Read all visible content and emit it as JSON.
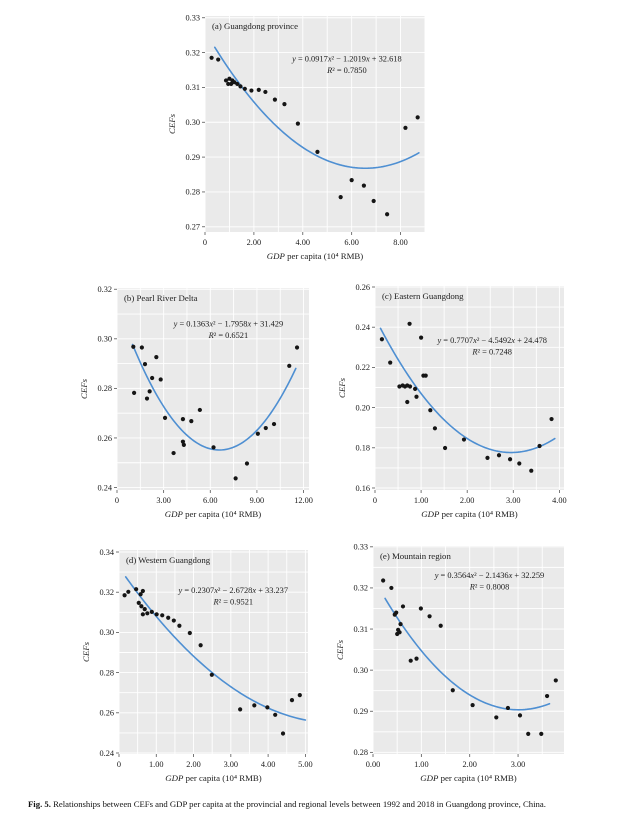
{
  "style": {
    "plot_bg": "#eaeaea",
    "grid": "#ffffff",
    "point": "#151515",
    "curve": "#4e8fd2",
    "text": "#1c1c1c",
    "tick": "#555555"
  },
  "figure": {
    "caption_label": "Fig. 5.",
    "caption_text": "Relationships between CEFs and GDP per capita at the provincial and regional levels between 1992 and 2018 in Guangdong province, China."
  },
  "chart_data": [
    {
      "type": "scatter",
      "panel": "a",
      "title": "(a) Guangdong province",
      "equation": "y = 0.0917x² − 1.2019x + 32.618",
      "r2": "R² = 0.7850",
      "fit": {
        "a": 0.0917,
        "b": -1.2019,
        "c": 32.618,
        "scale": 0.01,
        "x_start": 0.4,
        "x_end": 8.75
      },
      "xlabel_italic": "GDP",
      "xlabel_rest": " per capita (10⁴ RMB)",
      "ylabel": "CEFs",
      "xlim": [
        0,
        9.0
      ],
      "ylim": [
        0.2685,
        0.3305
      ],
      "xticks": {
        "values": [
          0,
          2,
          4,
          6,
          8
        ],
        "labels": [
          "0",
          "2.00",
          "4.00",
          "6.00",
          "8.00"
        ]
      },
      "yticks": {
        "values": [
          0.27,
          0.28,
          0.29,
          0.3,
          0.31,
          0.32,
          0.33
        ],
        "labels": [
          "0.27",
          "0.28",
          "0.29",
          "0.30",
          "0.31",
          "0.32",
          "0.33"
        ]
      },
      "grid": {
        "x_step": 1.0,
        "y_step": 0.01
      },
      "points": [
        [
          0.27,
          0.3185
        ],
        [
          0.54,
          0.318
        ],
        [
          0.86,
          0.312
        ],
        [
          0.95,
          0.311
        ],
        [
          1.0,
          0.3125
        ],
        [
          1.07,
          0.311
        ],
        [
          1.12,
          0.312
        ],
        [
          1.2,
          0.3115
        ],
        [
          1.32,
          0.311
        ],
        [
          1.45,
          0.3103
        ],
        [
          1.63,
          0.3096
        ],
        [
          1.9,
          0.3091
        ],
        [
          2.2,
          0.3093
        ],
        [
          2.47,
          0.3087
        ],
        [
          2.86,
          0.3065
        ],
        [
          3.25,
          0.3052
        ],
        [
          3.8,
          0.2996
        ],
        [
          4.6,
          0.2915
        ],
        [
          5.55,
          0.2785
        ],
        [
          6.0,
          0.2834
        ],
        [
          6.5,
          0.2818
        ],
        [
          6.9,
          0.2774
        ],
        [
          7.45,
          0.2736
        ],
        [
          8.2,
          0.2984
        ],
        [
          8.7,
          0.3014
        ]
      ]
    },
    {
      "type": "scatter",
      "panel": "b",
      "title": "(b) Pearl River Delta",
      "equation": "y = 0.1363x² − 1.7958x + 31.429",
      "r2": "R² = 0.6521",
      "fit": {
        "a": 0.1363,
        "b": -1.7958,
        "c": 31.429,
        "scale": 0.01,
        "x_start": 1.0,
        "x_end": 11.5
      },
      "xlabel_italic": "GDP",
      "xlabel_rest": " per capita (10⁴ RMB)",
      "ylabel": "CEFs",
      "xlim": [
        0,
        12.35
      ],
      "ylim": [
        0.239,
        0.3205
      ],
      "xticks": {
        "values": [
          0,
          3,
          6,
          9,
          12
        ],
        "labels": [
          "0",
          "3.00",
          "6.00",
          "9.00",
          "12.00"
        ]
      },
      "yticks": {
        "values": [
          0.24,
          0.26,
          0.28,
          0.3,
          0.32
        ],
        "labels": [
          "0.24",
          "0.26",
          "0.28",
          "0.30",
          "0.32"
        ]
      },
      "grid": {
        "x_step": 1.5,
        "y_step": 0.01
      },
      "points": [
        [
          1.05,
          0.2968
        ],
        [
          1.1,
          0.2782
        ],
        [
          1.6,
          0.2965
        ],
        [
          1.8,
          0.2898
        ],
        [
          1.93,
          0.2759
        ],
        [
          2.1,
          0.2788
        ],
        [
          2.26,
          0.2842
        ],
        [
          2.53,
          0.2926
        ],
        [
          2.81,
          0.2836
        ],
        [
          3.09,
          0.2681
        ],
        [
          3.64,
          0.2539
        ],
        [
          4.24,
          0.2676
        ],
        [
          4.24,
          0.2585
        ],
        [
          4.3,
          0.2572
        ],
        [
          4.78,
          0.2668
        ],
        [
          5.33,
          0.2713
        ],
        [
          6.21,
          0.2562
        ],
        [
          7.63,
          0.2437
        ],
        [
          8.36,
          0.2497
        ],
        [
          9.06,
          0.2617
        ],
        [
          9.57,
          0.264
        ],
        [
          10.1,
          0.2656
        ],
        [
          11.08,
          0.2891
        ],
        [
          11.58,
          0.2965
        ]
      ]
    },
    {
      "type": "scatter",
      "panel": "c",
      "title": "(c) Eastern Guangdong",
      "equation": "y = 0.7707x² − 4.5492x + 24.478",
      "r2": "R² = 0.7248",
      "fit": {
        "a": 0.7707,
        "b": -4.5492,
        "c": 24.478,
        "scale": 0.01,
        "x_start": 0.12,
        "x_end": 3.9
      },
      "xlabel_italic": "GDP",
      "xlabel_rest": " per capita (10⁴ RMB)",
      "ylabel": "CEFs",
      "xlim": [
        0,
        4.1
      ],
      "ylim": [
        0.159,
        0.2605
      ],
      "xticks": {
        "values": [
          0,
          1,
          2,
          3,
          4
        ],
        "labels": [
          "0",
          "1.00",
          "2.00",
          "3.00",
          "4.00"
        ]
      },
      "yticks": {
        "values": [
          0.16,
          0.18,
          0.2,
          0.22,
          0.24,
          0.26
        ],
        "labels": [
          "0.16",
          "0.18",
          "0.20",
          "0.22",
          "0.24",
          "0.26"
        ]
      },
      "grid": {
        "x_step": 0.5,
        "y_step": 0.01
      },
      "points": [
        [
          0.15,
          0.234
        ],
        [
          0.33,
          0.2224
        ],
        [
          0.53,
          0.2105
        ],
        [
          0.6,
          0.211
        ],
        [
          0.65,
          0.2105
        ],
        [
          0.7,
          0.211
        ],
        [
          0.76,
          0.2105
        ],
        [
          0.75,
          0.2417
        ],
        [
          1.0,
          0.2348
        ],
        [
          1.05,
          0.2159
        ],
        [
          1.1,
          0.2159
        ],
        [
          0.87,
          0.2093
        ],
        [
          0.9,
          0.2054
        ],
        [
          0.7,
          0.2028
        ],
        [
          1.2,
          0.1987
        ],
        [
          1.3,
          0.1897
        ],
        [
          1.52,
          0.1799
        ],
        [
          1.93,
          0.1841
        ],
        [
          2.44,
          0.175
        ],
        [
          2.69,
          0.1763
        ],
        [
          2.93,
          0.1743
        ],
        [
          3.13,
          0.1722
        ],
        [
          3.39,
          0.1686
        ],
        [
          3.57,
          0.1809
        ],
        [
          3.83,
          0.1943
        ]
      ]
    },
    {
      "type": "scatter",
      "panel": "d",
      "title": "(d) Western Guangdong",
      "equation": "y = 0.2307x² − 2.6728x + 33.237",
      "r2": "R² = 0.9521",
      "fit": {
        "a": 0.2307,
        "b": -2.6728,
        "c": 33.237,
        "scale": 0.01,
        "x_start": 0.18,
        "x_end": 5.0
      },
      "xlabel_italic": "GDP",
      "xlabel_rest": " per capita (10⁴ RMB)",
      "ylabel": "CEFs",
      "xlim": [
        0,
        5.07
      ],
      "ylim": [
        0.2395,
        0.341
      ],
      "xticks": {
        "values": [
          0,
          1,
          2,
          3,
          4,
          5
        ],
        "labels": [
          "0",
          "1.00",
          "2.00",
          "3.00",
          "4.00",
          "5.00"
        ]
      },
      "yticks": {
        "values": [
          0.24,
          0.26,
          0.28,
          0.3,
          0.32,
          0.34
        ],
        "labels": [
          "0.24",
          "0.26",
          "0.28",
          "0.30",
          "0.32",
          "0.34"
        ]
      },
      "grid": {
        "x_step": 0.5,
        "y_step": 0.01
      },
      "points": [
        [
          0.15,
          0.3185
        ],
        [
          0.25,
          0.3202
        ],
        [
          0.46,
          0.3215
        ],
        [
          0.58,
          0.319
        ],
        [
          0.64,
          0.3206
        ],
        [
          0.53,
          0.3147
        ],
        [
          0.6,
          0.313
        ],
        [
          0.69,
          0.3116
        ],
        [
          0.64,
          0.309
        ],
        [
          0.76,
          0.3095
        ],
        [
          0.88,
          0.3102
        ],
        [
          1.01,
          0.309
        ],
        [
          1.16,
          0.3085
        ],
        [
          1.32,
          0.3073
        ],
        [
          1.47,
          0.3059
        ],
        [
          1.62,
          0.3033
        ],
        [
          1.9,
          0.2997
        ],
        [
          2.19,
          0.2936
        ],
        [
          2.49,
          0.2789
        ],
        [
          3.25,
          0.2617
        ],
        [
          3.63,
          0.2637
        ],
        [
          3.98,
          0.2627
        ],
        [
          4.19,
          0.259
        ],
        [
          4.4,
          0.2497
        ],
        [
          4.64,
          0.2663
        ],
        [
          4.85,
          0.2688
        ]
      ]
    },
    {
      "type": "scatter",
      "panel": "e",
      "title": "(e) Mountain region",
      "equation": "y = 0.3564x² − 2.1436x + 32.259",
      "r2": "R² = 0.8008",
      "fit": {
        "a": 0.3564,
        "b": -2.1436,
        "c": 32.259,
        "scale": 0.01,
        "x_start": 0.25,
        "x_end": 3.65
      },
      "xlabel_italic": "GDP",
      "xlabel_rest": " per capita (10⁴ RMB)",
      "ylabel": "CEFs",
      "xlim": [
        0,
        3.95
      ],
      "ylim": [
        0.2796,
        0.3302
      ],
      "xticks": {
        "values": [
          0,
          1,
          2,
          3
        ],
        "labels": [
          "0.00",
          "1.00",
          "2.00",
          "3.00"
        ]
      },
      "yticks": {
        "values": [
          0.28,
          0.29,
          0.3,
          0.31,
          0.32,
          0.33
        ],
        "labels": [
          "0.28",
          "0.29",
          "0.30",
          "0.31",
          "0.32",
          "0.33"
        ]
      },
      "grid": {
        "x_step": 0.5,
        "y_step": 0.005
      },
      "points": [
        [
          0.21,
          0.3218
        ],
        [
          0.38,
          0.32
        ],
        [
          0.45,
          0.3135
        ],
        [
          0.48,
          0.314
        ],
        [
          0.5,
          0.3088
        ],
        [
          0.52,
          0.3098
        ],
        [
          0.55,
          0.3092
        ],
        [
          0.57,
          0.3112
        ],
        [
          0.62,
          0.3155
        ],
        [
          0.78,
          0.3023
        ],
        [
          0.9,
          0.3028
        ],
        [
          0.99,
          0.315
        ],
        [
          1.17,
          0.3131
        ],
        [
          1.4,
          0.3108
        ],
        [
          1.65,
          0.2951
        ],
        [
          2.06,
          0.2915
        ],
        [
          2.55,
          0.2885
        ],
        [
          2.79,
          0.2908
        ],
        [
          3.04,
          0.289
        ],
        [
          3.21,
          0.2845
        ],
        [
          3.48,
          0.2845
        ],
        [
          3.6,
          0.2937
        ],
        [
          3.78,
          0.2975
        ]
      ]
    }
  ]
}
